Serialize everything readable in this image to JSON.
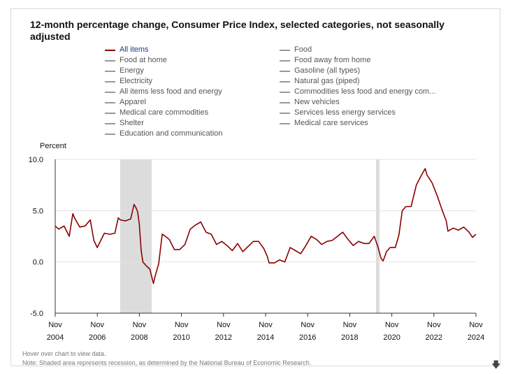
{
  "title": "12-month percentage change, Consumer Price Index, selected categories, not seasonally adjusted",
  "legend": {
    "left": [
      "All items",
      "Food at home",
      "Energy",
      "Electricity",
      "All items less food and energy",
      "Apparel",
      "Medical care commodities",
      "Shelter",
      "Education and communication"
    ],
    "right": [
      "Food",
      "Food away from home",
      "Gasoline (all types)",
      "Natural gas (piped)",
      "Commodities less food and energy com...",
      "New vehicles",
      "Services less energy services",
      "Medical care services"
    ],
    "active": "All items"
  },
  "colors": {
    "series": "#8b0000",
    "inactive": "#999999",
    "recession": "#dcdcdc",
    "active_label": "#1a3d7c"
  },
  "footer": {
    "hover": "Hover over chart to view data.",
    "note": "Note: Shaded area represents recession, as determined by the National Bureau of Economic Research."
  },
  "download_icon": "arrow-down-icon",
  "chart_data": {
    "type": "line",
    "ylabel": "Percent",
    "ylim": [
      -5,
      10
    ],
    "yticks": [
      "10.0",
      "5.0",
      "0.0",
      "-5.0"
    ],
    "ytick_values": [
      10,
      5,
      0,
      -5
    ],
    "xlim": [
      2004.833,
      2024.833
    ],
    "xticks": [
      {
        "month": "Nov",
        "year": "2004",
        "x": 2004.833
      },
      {
        "month": "Nov",
        "year": "2006",
        "x": 2006.833
      },
      {
        "month": "Nov",
        "year": "2008",
        "x": 2008.833
      },
      {
        "month": "Nov",
        "year": "2010",
        "x": 2010.833
      },
      {
        "month": "Nov",
        "year": "2012",
        "x": 2012.833
      },
      {
        "month": "Nov",
        "year": "2014",
        "x": 2014.833
      },
      {
        "month": "Nov",
        "year": "2016",
        "x": 2016.833
      },
      {
        "month": "Nov",
        "year": "2018",
        "x": 2018.833
      },
      {
        "month": "Nov",
        "year": "2020",
        "x": 2020.833
      },
      {
        "month": "Nov",
        "year": "2022",
        "x": 2022.833
      },
      {
        "month": "Nov",
        "year": "2024",
        "x": 2024.833
      }
    ],
    "recessions": [
      [
        2007.917,
        2009.417
      ],
      [
        2020.083,
        2020.25
      ]
    ],
    "series": [
      {
        "name": "All items",
        "x": [
          2004.83,
          2005.0,
          2005.25,
          2005.5,
          2005.67,
          2005.75,
          2006.0,
          2006.25,
          2006.5,
          2006.67,
          2006.83,
          2007.0,
          2007.17,
          2007.42,
          2007.67,
          2007.83,
          2007.92,
          2008.17,
          2008.42,
          2008.58,
          2008.67,
          2008.75,
          2008.83,
          2008.92,
          2009.0,
          2009.17,
          2009.33,
          2009.5,
          2009.58,
          2009.75,
          2009.92,
          2010.0,
          2010.25,
          2010.5,
          2010.75,
          2011.0,
          2011.25,
          2011.5,
          2011.75,
          2012.0,
          2012.25,
          2012.5,
          2012.75,
          2013.0,
          2013.25,
          2013.5,
          2013.75,
          2014.0,
          2014.25,
          2014.5,
          2014.75,
          2014.92,
          2015.0,
          2015.25,
          2015.5,
          2015.75,
          2016.0,
          2016.25,
          2016.5,
          2016.75,
          2017.0,
          2017.25,
          2017.5,
          2017.75,
          2018.0,
          2018.25,
          2018.5,
          2018.75,
          2019.0,
          2019.25,
          2019.5,
          2019.75,
          2020.0,
          2020.17,
          2020.33,
          2020.42,
          2020.58,
          2020.75,
          2021.0,
          2021.17,
          2021.33,
          2021.5,
          2021.75,
          2022.0,
          2022.25,
          2022.42,
          2022.5,
          2022.75,
          2023.0,
          2023.25,
          2023.42,
          2023.5,
          2023.75,
          2024.0,
          2024.25,
          2024.5,
          2024.67,
          2024.83
        ],
        "y": [
          3.5,
          3.2,
          3.5,
          2.5,
          4.7,
          4.3,
          3.4,
          3.5,
          4.1,
          2.1,
          1.4,
          2.1,
          2.8,
          2.7,
          2.8,
          4.3,
          4.1,
          4.0,
          4.2,
          5.6,
          5.3,
          4.9,
          3.7,
          1.1,
          0.0,
          -0.4,
          -0.7,
          -2.1,
          -1.4,
          -0.2,
          2.7,
          2.6,
          2.2,
          1.2,
          1.2,
          1.7,
          3.2,
          3.6,
          3.9,
          2.9,
          2.7,
          1.7,
          2.0,
          1.6,
          1.1,
          1.8,
          1.0,
          1.5,
          2.0,
          2.0,
          1.3,
          0.5,
          -0.1,
          -0.1,
          0.2,
          0.0,
          1.4,
          1.1,
          0.8,
          1.6,
          2.5,
          2.2,
          1.7,
          2.0,
          2.1,
          2.5,
          2.9,
          2.2,
          1.6,
          2.0,
          1.8,
          1.8,
          2.5,
          1.5,
          0.3,
          0.1,
          1.0,
          1.4,
          1.4,
          2.6,
          5.0,
          5.4,
          5.4,
          7.5,
          8.5,
          9.1,
          8.5,
          7.7,
          6.4,
          4.9,
          4.0,
          3.0,
          3.3,
          3.1,
          3.4,
          2.9,
          2.4,
          2.7
        ]
      }
    ]
  }
}
